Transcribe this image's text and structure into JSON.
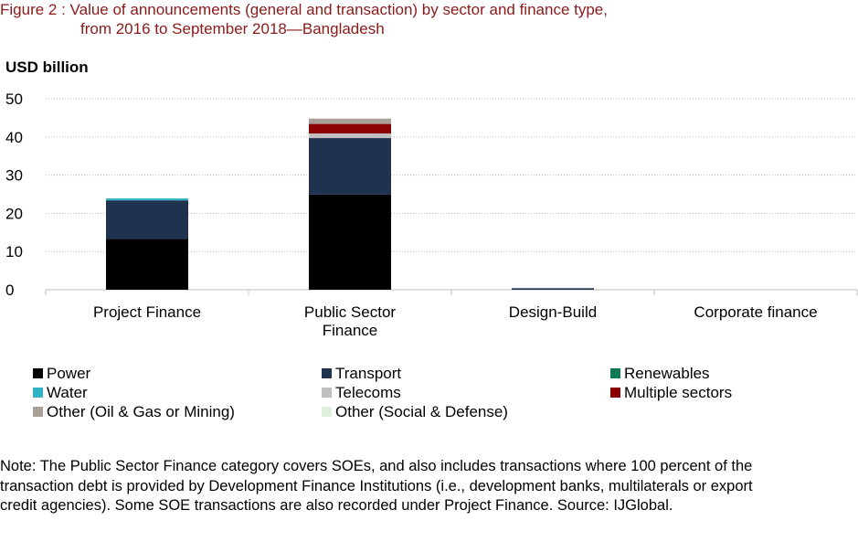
{
  "figure": {
    "title_line1": "Figure 2 : Value of announcements (general and transaction) by sector and finance type,",
    "title_line2": "from 2016 to September 2018—Bangladesh",
    "title_color": "#8b1a1a"
  },
  "note": "Note: The Public Sector Finance category covers SOEs, and also includes transactions where 100 percent of the transaction debt is provided by Development Finance Institutions (i.e., development banks, multilaterals or export credit agencies). Some SOE transactions are also recorded under Project Finance. Source: IJGlobal.",
  "chart_data": {
    "type": "bar",
    "stacked": true,
    "ylabel": "USD billion",
    "ylim": [
      0,
      50
    ],
    "yticks": [
      0,
      10,
      20,
      30,
      40,
      50
    ],
    "grid": true,
    "legend_position": "bottom",
    "categories": [
      [
        "Project Finance"
      ],
      [
        "Public Sector",
        "Finance"
      ],
      [
        "Design-Build"
      ],
      [
        "Corporate finance"
      ]
    ],
    "series": [
      {
        "name": "Power",
        "color": "#000000",
        "values": [
          13.3,
          24.9,
          0,
          0
        ]
      },
      {
        "name": "Transport",
        "color": "#1f3350",
        "values": [
          10.1,
          14.8,
          0.4,
          0
        ]
      },
      {
        "name": "Renewables",
        "color": "#0e7a52",
        "values": [
          0,
          0,
          0,
          0
        ]
      },
      {
        "name": "Water",
        "color": "#2fb3c6",
        "values": [
          0.5,
          0,
          0,
          0
        ]
      },
      {
        "name": "Telecoms",
        "color": "#c0c0c0",
        "values": [
          0,
          1.2,
          0,
          0
        ]
      },
      {
        "name": "Multiple sectors",
        "color": "#8b0000",
        "values": [
          0,
          2.5,
          0,
          0
        ]
      },
      {
        "name": "Other (Oil & Gas or Mining)",
        "color": "#a89f99",
        "values": [
          0,
          1.4,
          0,
          0
        ]
      },
      {
        "name": "Other (Social & Defense)",
        "color": "#dff0df",
        "values": [
          0,
          0,
          0,
          0
        ]
      }
    ]
  }
}
